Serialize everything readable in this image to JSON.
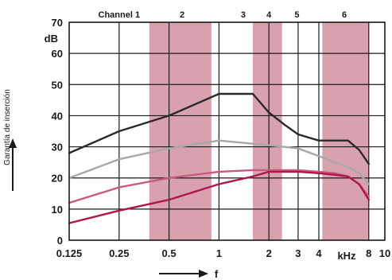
{
  "chart_data": {
    "type": "line",
    "xlabel": "f",
    "ylabel": "Garantía de inserción",
    "y_unit": "dB",
    "x_unit": "kHz",
    "x_scale": "log",
    "xlim": [
      0.125,
      10
    ],
    "ylim": [
      0,
      70
    ],
    "x_ticks": [
      {
        "value": 0.125,
        "label": "0.125"
      },
      {
        "value": 0.25,
        "label": "0.25"
      },
      {
        "value": 0.5,
        "label": "0.5"
      },
      {
        "value": 1,
        "label": "1"
      },
      {
        "value": 2,
        "label": "2"
      },
      {
        "value": 3,
        "label": "3"
      },
      {
        "value": 4,
        "label": "4"
      },
      {
        "value": 8,
        "label": "8"
      },
      {
        "value": 10,
        "label": "10"
      }
    ],
    "y_ticks": [
      {
        "value": 0,
        "label": "0"
      },
      {
        "value": 10,
        "label": "10"
      },
      {
        "value": 20,
        "label": "20"
      },
      {
        "value": 30,
        "label": "30"
      },
      {
        "value": 40,
        "label": "40"
      },
      {
        "value": 50,
        "label": "50"
      },
      {
        "value": 60,
        "label": "60"
      },
      {
        "value": 70,
        "label": "70"
      }
    ],
    "grid": true,
    "channels": [
      {
        "label": "Channel 1",
        "x": 0.25
      },
      {
        "label": "2",
        "x": 0.6
      },
      {
        "label": "3",
        "x": 1.4
      },
      {
        "label": "4",
        "x": 2
      },
      {
        "label": "5",
        "x": 2.95
      },
      {
        "label": "6",
        "x": 5.7
      }
    ],
    "shaded_bands": [
      {
        "from": 0.38,
        "to": 0.9
      },
      {
        "from": 1.6,
        "to": 2.4
      },
      {
        "from": 4.2,
        "to": 8
      }
    ],
    "series": [
      {
        "color": "#2a2a2a",
        "x": [
          0.125,
          0.25,
          0.5,
          1,
          1.6,
          2,
          2.5,
          3,
          4,
          5,
          6,
          7,
          8
        ],
        "y": [
          28,
          35,
          40,
          47,
          47,
          41,
          37,
          34,
          32,
          32,
          32,
          29,
          24.5
        ]
      },
      {
        "color": "#a8a8a8",
        "x": [
          0.125,
          0.25,
          0.5,
          1,
          1.6,
          2,
          3,
          4,
          5,
          6,
          7,
          8
        ],
        "y": [
          20,
          26,
          29.5,
          32,
          31,
          30.5,
          29.5,
          27,
          25,
          23.5,
          21.5,
          18
        ]
      },
      {
        "color": "#c75a7e",
        "x": [
          0.125,
          0.25,
          0.5,
          1,
          1.6,
          2,
          3,
          4,
          5,
          6,
          7,
          8
        ],
        "y": [
          12,
          17,
          20,
          22,
          22.5,
          22.5,
          22.5,
          22,
          21.5,
          20.5,
          18,
          14
        ]
      },
      {
        "color": "#b0164e",
        "x": [
          0.125,
          0.25,
          0.5,
          1,
          1.6,
          2,
          3,
          4,
          5,
          6,
          7,
          8
        ],
        "y": [
          5.5,
          9.5,
          13,
          18,
          20.5,
          22,
          22,
          21.5,
          21,
          20.5,
          18,
          13
        ]
      }
    ]
  }
}
